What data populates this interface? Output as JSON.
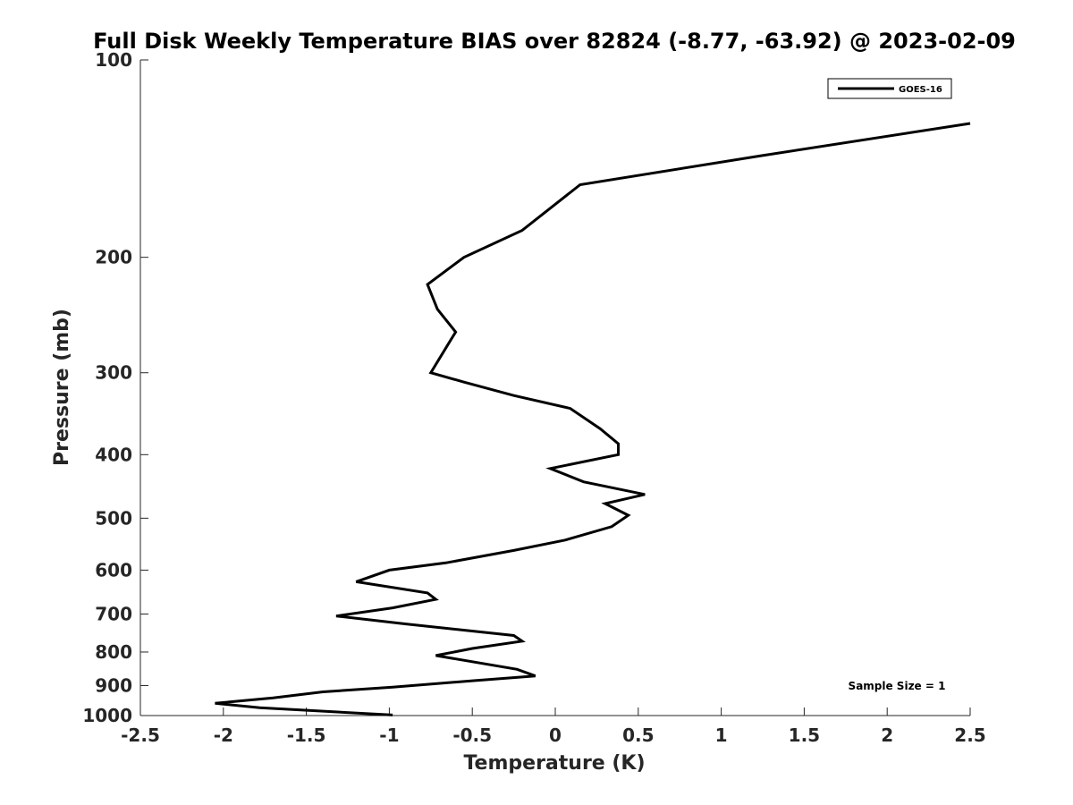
{
  "chart_data": {
    "type": "line",
    "title": "Full Disk Weekly Temperature BIAS over 82824 (-8.77, -63.92) @ 2023-02-09",
    "xlabel": "Temperature (K)",
    "ylabel": "Pressure (mb)",
    "xlim": [
      -2.5,
      2.5
    ],
    "ylim": [
      100,
      1000
    ],
    "y_scale": "log",
    "y_reversed": true,
    "x_ticks": [
      -2.5,
      -2,
      -1.5,
      -1,
      -0.5,
      0,
      0.5,
      1,
      1.5,
      2,
      2.5
    ],
    "x_tick_labels": [
      "-2.5",
      "-2",
      "-1.5",
      "-1",
      "-0.5",
      "0",
      "0.5",
      "1",
      "1.5",
      "2",
      "2.5"
    ],
    "y_ticks": [
      100,
      200,
      300,
      400,
      500,
      600,
      700,
      800,
      900,
      1000
    ],
    "y_tick_labels": [
      "100",
      "200",
      "300",
      "400",
      "500",
      "600",
      "700",
      "800",
      "900",
      "1000"
    ],
    "grid": false,
    "legend_position": "top-right",
    "annotation": "Sample Size = 1",
    "line_color": "#000000",
    "series": [
      {
        "name": "GOES-16",
        "points": [
          {
            "x": 2.5,
            "y": 125
          },
          {
            "x": 1.24,
            "y": 140
          },
          {
            "x": 0.15,
            "y": 155
          },
          {
            "x": -0.2,
            "y": 182
          },
          {
            "x": -0.55,
            "y": 200
          },
          {
            "x": -0.77,
            "y": 220
          },
          {
            "x": -0.71,
            "y": 240
          },
          {
            "x": -0.6,
            "y": 260
          },
          {
            "x": -0.64,
            "y": 270
          },
          {
            "x": -0.75,
            "y": 300
          },
          {
            "x": -0.55,
            "y": 310
          },
          {
            "x": -0.25,
            "y": 325
          },
          {
            "x": 0.09,
            "y": 340
          },
          {
            "x": 0.27,
            "y": 365
          },
          {
            "x": 0.38,
            "y": 385
          },
          {
            "x": 0.38,
            "y": 400
          },
          {
            "x": -0.03,
            "y": 420
          },
          {
            "x": 0.17,
            "y": 440
          },
          {
            "x": 0.54,
            "y": 460
          },
          {
            "x": 0.3,
            "y": 475
          },
          {
            "x": 0.44,
            "y": 495
          },
          {
            "x": 0.34,
            "y": 515
          },
          {
            "x": 0.06,
            "y": 540
          },
          {
            "x": -0.25,
            "y": 560
          },
          {
            "x": -0.66,
            "y": 585
          },
          {
            "x": -1.0,
            "y": 600
          },
          {
            "x": -1.2,
            "y": 625
          },
          {
            "x": -0.77,
            "y": 650
          },
          {
            "x": -0.72,
            "y": 665
          },
          {
            "x": -0.98,
            "y": 685
          },
          {
            "x": -1.32,
            "y": 705
          },
          {
            "x": -0.9,
            "y": 725
          },
          {
            "x": -0.25,
            "y": 755
          },
          {
            "x": -0.2,
            "y": 770
          },
          {
            "x": -0.5,
            "y": 790
          },
          {
            "x": -0.72,
            "y": 810
          },
          {
            "x": -0.23,
            "y": 850
          },
          {
            "x": -0.12,
            "y": 870
          },
          {
            "x": -0.5,
            "y": 885
          },
          {
            "x": -0.98,
            "y": 905
          },
          {
            "x": -1.4,
            "y": 920
          },
          {
            "x": -1.7,
            "y": 940
          },
          {
            "x": -2.05,
            "y": 958
          },
          {
            "x": -1.78,
            "y": 973
          },
          {
            "x": -0.98,
            "y": 998
          }
        ]
      }
    ]
  }
}
